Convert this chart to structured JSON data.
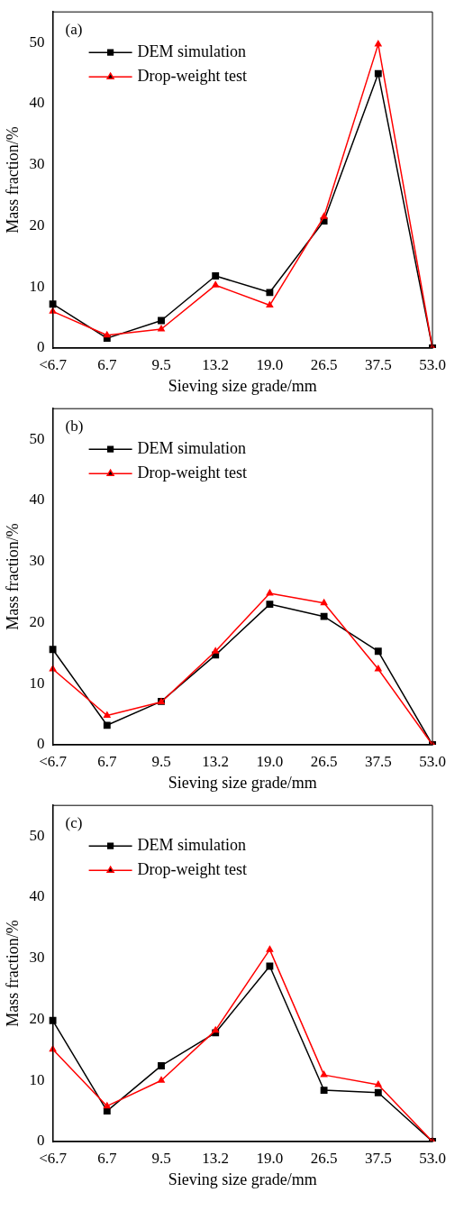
{
  "chart_data": [
    {
      "type": "line",
      "annotations": [
        "(a)"
      ],
      "xlabel": "Sieving size grade/mm",
      "ylabel": "Mass fraction/%",
      "categories": [
        "<6.7",
        "6.7",
        "9.5",
        "13.2",
        "19.0",
        "26.5",
        "37.5",
        "53.0"
      ],
      "series": [
        {
          "name": "DEM simulation",
          "color": "#000000",
          "marker": "square",
          "values": [
            7.2,
            1.6,
            4.5,
            11.8,
            9.1,
            20.8,
            44.9,
            0
          ]
        },
        {
          "name": "Drop-weight test",
          "color": "#ff0000",
          "marker": "triangle",
          "values": [
            6.0,
            2.1,
            3.1,
            10.3,
            7.0,
            21.5,
            49.7,
            0
          ]
        }
      ],
      "ylim": [
        0,
        55
      ],
      "yticks": [
        0,
        10,
        20,
        30,
        40,
        50
      ],
      "legend": "top left"
    },
    {
      "type": "line",
      "annotations": [
        "(b)"
      ],
      "xlabel": "Sieving size grade/mm",
      "ylabel": "Mass fraction/%",
      "categories": [
        "<6.7",
        "6.7",
        "9.5",
        "13.2",
        "19.0",
        "26.5",
        "37.5",
        "53.0"
      ],
      "series": [
        {
          "name": "DEM simulation",
          "color": "#000000",
          "marker": "square",
          "values": [
            15.6,
            3.2,
            7.1,
            14.7,
            23.0,
            21.0,
            15.3,
            0
          ]
        },
        {
          "name": "Drop-weight test",
          "color": "#ff0000",
          "marker": "triangle",
          "values": [
            12.4,
            4.8,
            7.0,
            15.3,
            24.8,
            23.2,
            12.4,
            0
          ]
        }
      ],
      "ylim": [
        0,
        55
      ],
      "yticks": [
        0,
        10,
        20,
        30,
        40,
        50
      ],
      "legend": "top left"
    },
    {
      "type": "line",
      "annotations": [
        "(c)"
      ],
      "xlabel": "Sieving size grade/mm",
      "ylabel": "Mass fraction/%",
      "categories": [
        "<6.7",
        "6.7",
        "9.5",
        "13.2",
        "19.0",
        "26.5",
        "37.5",
        "53.0"
      ],
      "series": [
        {
          "name": "DEM simulation",
          "color": "#000000",
          "marker": "square",
          "values": [
            19.8,
            5.0,
            12.4,
            17.8,
            28.7,
            8.4,
            8.0,
            0
          ]
        },
        {
          "name": "Drop-weight test",
          "color": "#ff0000",
          "marker": "triangle",
          "values": [
            15.1,
            5.8,
            10.0,
            18.2,
            31.4,
            10.9,
            9.3,
            0
          ]
        }
      ],
      "ylim": [
        0,
        55
      ],
      "yticks": [
        0,
        10,
        20,
        30,
        40,
        50
      ],
      "legend": "top left"
    }
  ]
}
